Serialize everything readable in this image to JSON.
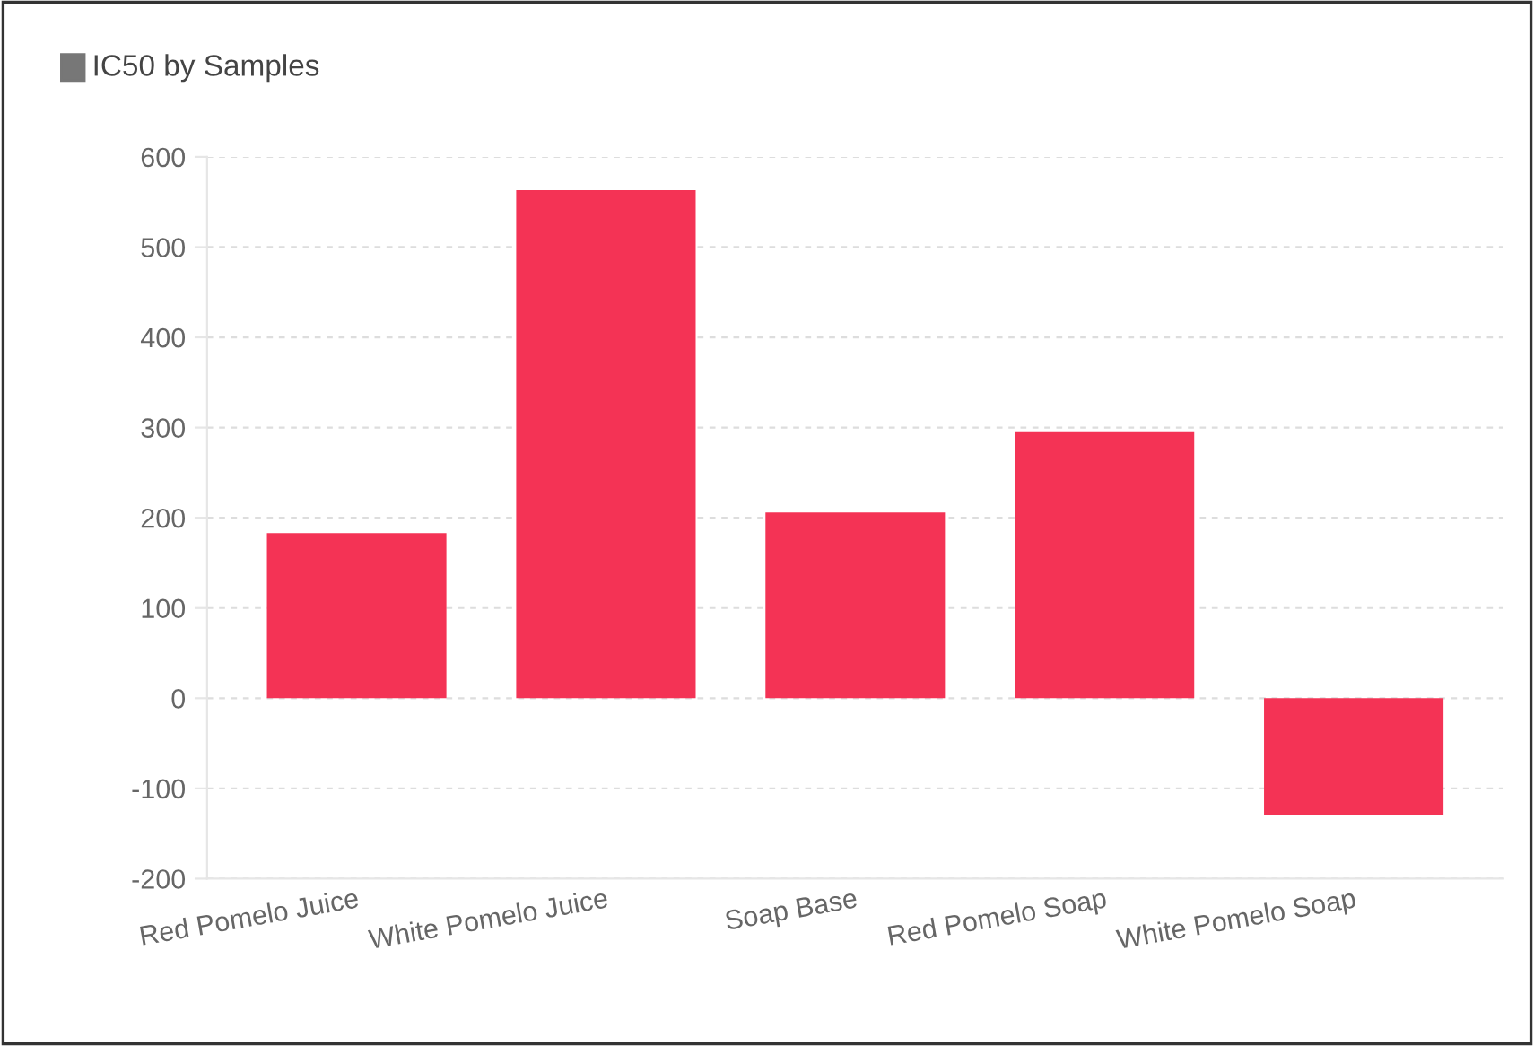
{
  "chart_data": {
    "type": "bar",
    "title": "IC50 by Samples",
    "categories": [
      "Red Pomelo Juice",
      "White Pomelo Juice",
      "Soap Base",
      "Red Pomelo Soap",
      "White Pomelo Soap"
    ],
    "values": [
      183,
      563,
      206,
      295,
      -130
    ],
    "color": "#f43355",
    "ylim": [
      -200,
      600
    ],
    "yticks": [
      -200,
      -100,
      0,
      100,
      200,
      300,
      400,
      500,
      600
    ],
    "grid": "y"
  }
}
